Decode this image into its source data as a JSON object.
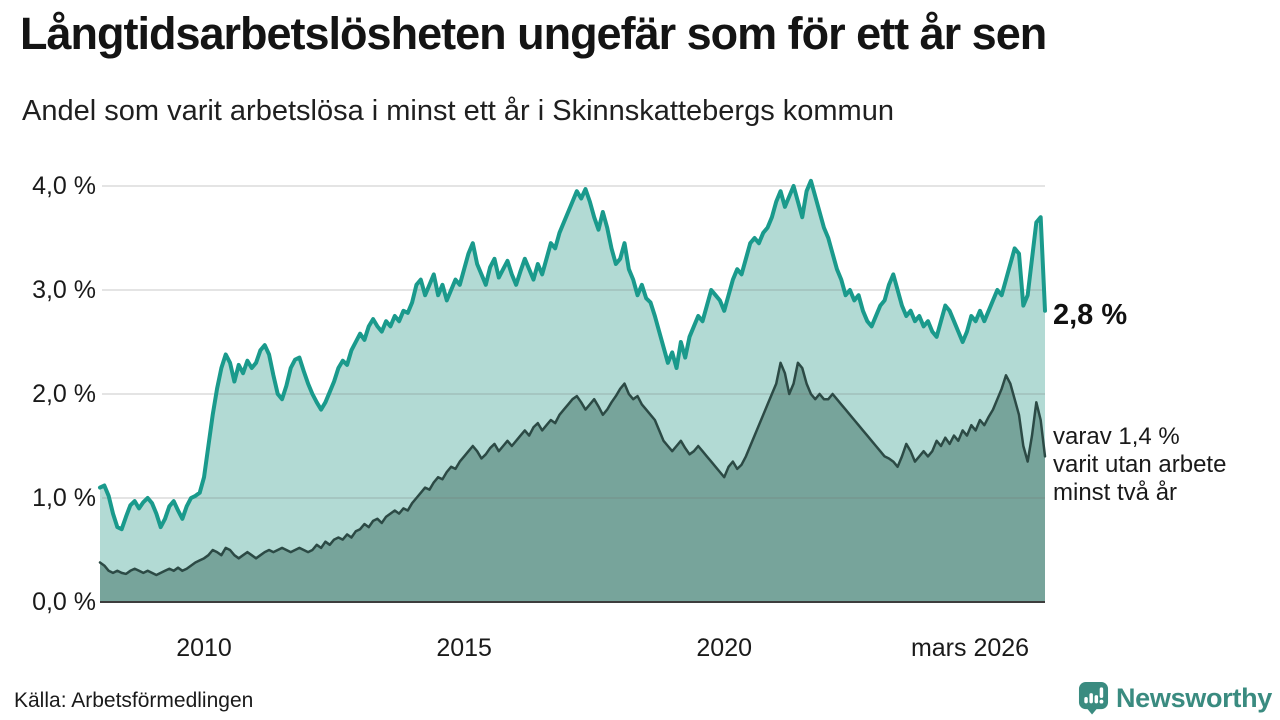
{
  "chart_data": {
    "type": "area",
    "title": "Långtidsarbetslösheten ungefär som för ett år sen",
    "subtitle": "Andel som varit arbetslösa i minst ett år i Skinnskattebergs kommun",
    "unit": "%",
    "grid": true,
    "x_start": "2008-01",
    "x_end": "2026-03",
    "ylim": [
      0,
      4.1
    ],
    "y_tick_labels": [
      "4,0 %",
      "3,0 %",
      "2,0 %",
      "1,0 %",
      "0,0 %"
    ],
    "y_tick_values": [
      4,
      3,
      2,
      1,
      0
    ],
    "x_ticks": [
      {
        "label": "2010",
        "month_index": 24
      },
      {
        "label": "2015",
        "month_index": 84
      },
      {
        "label": "2020",
        "month_index": 144
      },
      {
        "label": "mars 2026",
        "month_index": 218
      }
    ],
    "annotations": {
      "end_label": "2,8 %",
      "end_value": 2.8,
      "note_lines": [
        "varav 1,4 %",
        "varit utan arbete",
        "minst två år"
      ],
      "secondary_end_value": 1.4
    },
    "series": [
      {
        "name": "Andel arbetslösa minst ett år",
        "line_color": "#1a9a8c",
        "fill_color": "#b2dad4",
        "line_width": 4,
        "values": [
          1.1,
          1.12,
          1.02,
          0.85,
          0.72,
          0.7,
          0.82,
          0.93,
          0.97,
          0.9,
          0.96,
          1.0,
          0.95,
          0.85,
          0.72,
          0.8,
          0.92,
          0.97,
          0.88,
          0.8,
          0.92,
          1.0,
          1.02,
          1.05,
          1.2,
          1.5,
          1.8,
          2.05,
          2.25,
          2.38,
          2.3,
          2.12,
          2.28,
          2.2,
          2.32,
          2.25,
          2.3,
          2.42,
          2.47,
          2.38,
          2.18,
          2.0,
          1.95,
          2.08,
          2.25,
          2.33,
          2.35,
          2.22,
          2.1,
          2.0,
          1.92,
          1.85,
          1.92,
          2.02,
          2.12,
          2.25,
          2.32,
          2.28,
          2.42,
          2.5,
          2.58,
          2.52,
          2.65,
          2.72,
          2.65,
          2.6,
          2.7,
          2.65,
          2.75,
          2.7,
          2.8,
          2.78,
          2.88,
          3.05,
          3.1,
          2.95,
          3.05,
          3.15,
          2.95,
          3.05,
          2.9,
          3.0,
          3.1,
          3.05,
          3.2,
          3.35,
          3.45,
          3.25,
          3.15,
          3.05,
          3.22,
          3.3,
          3.12,
          3.2,
          3.28,
          3.15,
          3.05,
          3.18,
          3.3,
          3.2,
          3.1,
          3.25,
          3.15,
          3.3,
          3.45,
          3.4,
          3.55,
          3.65,
          3.75,
          3.85,
          3.95,
          3.88,
          3.97,
          3.85,
          3.7,
          3.58,
          3.75,
          3.6,
          3.4,
          3.25,
          3.3,
          3.45,
          3.2,
          3.1,
          2.95,
          3.05,
          2.92,
          2.88,
          2.75,
          2.6,
          2.45,
          2.3,
          2.4,
          2.25,
          2.5,
          2.35,
          2.55,
          2.65,
          2.75,
          2.7,
          2.85,
          3.0,
          2.95,
          2.9,
          2.8,
          2.95,
          3.1,
          3.2,
          3.15,
          3.3,
          3.45,
          3.5,
          3.45,
          3.55,
          3.6,
          3.7,
          3.85,
          3.95,
          3.8,
          3.9,
          4.0,
          3.85,
          3.7,
          3.95,
          4.05,
          3.9,
          3.75,
          3.6,
          3.5,
          3.35,
          3.2,
          3.1,
          2.95,
          3.0,
          2.9,
          2.95,
          2.8,
          2.7,
          2.65,
          2.75,
          2.85,
          2.9,
          3.05,
          3.15,
          3.0,
          2.85,
          2.75,
          2.8,
          2.7,
          2.75,
          2.65,
          2.7,
          2.6,
          2.55,
          2.7,
          2.85,
          2.8,
          2.7,
          2.6,
          2.5,
          2.6,
          2.75,
          2.7,
          2.8,
          2.7,
          2.8,
          2.9,
          3.0,
          2.95,
          3.1,
          3.25,
          3.4,
          3.35,
          2.85,
          2.95,
          3.3,
          3.65,
          3.7,
          2.8
        ]
      },
      {
        "name": "varav utan arbete minst två år",
        "line_color": "#2c4a45",
        "fill_color": "#77a49b",
        "line_width": 2.5,
        "values": [
          0.38,
          0.35,
          0.3,
          0.28,
          0.3,
          0.28,
          0.27,
          0.3,
          0.32,
          0.3,
          0.28,
          0.3,
          0.28,
          0.26,
          0.28,
          0.3,
          0.32,
          0.3,
          0.33,
          0.3,
          0.32,
          0.35,
          0.38,
          0.4,
          0.42,
          0.45,
          0.5,
          0.48,
          0.45,
          0.52,
          0.5,
          0.45,
          0.42,
          0.45,
          0.48,
          0.45,
          0.42,
          0.45,
          0.48,
          0.5,
          0.48,
          0.5,
          0.52,
          0.5,
          0.48,
          0.5,
          0.52,
          0.5,
          0.48,
          0.5,
          0.55,
          0.52,
          0.58,
          0.55,
          0.6,
          0.62,
          0.6,
          0.65,
          0.62,
          0.68,
          0.7,
          0.75,
          0.72,
          0.78,
          0.8,
          0.76,
          0.82,
          0.85,
          0.88,
          0.85,
          0.9,
          0.88,
          0.95,
          1.0,
          1.05,
          1.1,
          1.08,
          1.15,
          1.2,
          1.18,
          1.25,
          1.3,
          1.28,
          1.35,
          1.4,
          1.45,
          1.5,
          1.45,
          1.38,
          1.42,
          1.48,
          1.52,
          1.45,
          1.5,
          1.55,
          1.5,
          1.55,
          1.6,
          1.65,
          1.6,
          1.68,
          1.72,
          1.65,
          1.7,
          1.75,
          1.72,
          1.8,
          1.85,
          1.9,
          1.95,
          1.98,
          1.92,
          1.85,
          1.9,
          1.95,
          1.88,
          1.8,
          1.85,
          1.92,
          1.98,
          2.05,
          2.1,
          2.0,
          1.95,
          1.98,
          1.9,
          1.85,
          1.8,
          1.75,
          1.65,
          1.55,
          1.5,
          1.45,
          1.5,
          1.55,
          1.48,
          1.42,
          1.45,
          1.5,
          1.45,
          1.4,
          1.35,
          1.3,
          1.25,
          1.2,
          1.3,
          1.35,
          1.28,
          1.32,
          1.4,
          1.5,
          1.6,
          1.7,
          1.8,
          1.9,
          2.0,
          2.1,
          2.3,
          2.2,
          2.0,
          2.1,
          2.3,
          2.25,
          2.1,
          2.0,
          1.95,
          2.0,
          1.95,
          1.95,
          2.0,
          1.95,
          1.9,
          1.85,
          1.8,
          1.75,
          1.7,
          1.65,
          1.6,
          1.55,
          1.5,
          1.45,
          1.4,
          1.38,
          1.35,
          1.3,
          1.4,
          1.52,
          1.45,
          1.35,
          1.4,
          1.45,
          1.4,
          1.45,
          1.55,
          1.5,
          1.58,
          1.52,
          1.6,
          1.55,
          1.65,
          1.6,
          1.7,
          1.65,
          1.75,
          1.7,
          1.78,
          1.85,
          1.95,
          2.05,
          2.18,
          2.1,
          1.95,
          1.8,
          1.5,
          1.35,
          1.6,
          1.92,
          1.75,
          1.4
        ]
      }
    ],
    "style": {
      "gridline_color": "rgba(110,110,110,0.25)",
      "axis_color": "#3d3d3d",
      "background": "#ffffff"
    }
  },
  "footer": {
    "source": "Källa: Arbetsförmedlingen",
    "brand": "Newsworthy",
    "brand_color": "#3a8b80"
  }
}
